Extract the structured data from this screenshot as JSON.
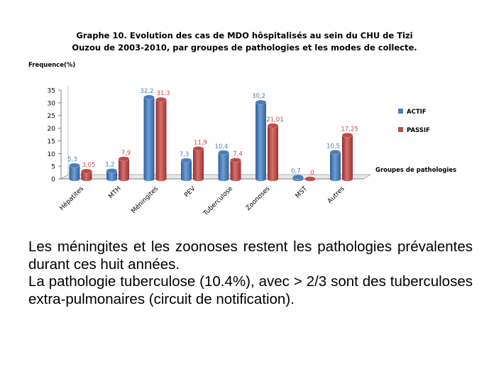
{
  "title": {
    "line1": "Graphe 10. Evolution  des cas de MDO hôspitalisés  au sein du CHU de Tizi",
    "line2": "Ouzou de 2003-2010, par groupes de pathologies  et les modes de collecte."
  },
  "chart_data": {
    "type": "bar",
    "ylabel": "Frequence(%)",
    "xlabel": "Groupes de pathologies",
    "categories": [
      "Hépatites",
      "MTH",
      "Méningites",
      "PEV",
      "Tuberculose",
      "Zoonoses",
      "MST",
      "Autres"
    ],
    "series": [
      {
        "name": "ACTIF",
        "color": "#4a7ebb",
        "values": [
          5.3,
          3.2,
          32.2,
          7.3,
          10.4,
          30.2,
          0.7,
          10.5
        ],
        "labels": [
          "5,3",
          "3,2",
          "32,2",
          "7,3",
          "10,4",
          "30,2",
          "0,7",
          "10,5"
        ]
      },
      {
        "name": "PASSIF",
        "color": "#be4b48",
        "values": [
          3.05,
          7.9,
          31.3,
          11.9,
          7.4,
          21.01,
          0,
          17.25
        ],
        "labels": [
          "3,05",
          "7,9",
          "31,3",
          "11,9",
          "7,4",
          "21,01",
          "0",
          "17,25"
        ]
      }
    ],
    "yticks": [
      "0",
      "5",
      "10",
      "15",
      "20",
      "25",
      "30",
      "35"
    ],
    "ylim": [
      0,
      35
    ],
    "grid": false,
    "legend_position": "right"
  },
  "text": {
    "paragraph1": "Les méningites et les zoonoses restent les pathologies prévalentes durant ces huit années.",
    "paragraph2": "La pathologie tuberculose (10.4%), avec > 2/3 sont des tuberculoses extra-pulmonaires (circuit de notification)."
  }
}
